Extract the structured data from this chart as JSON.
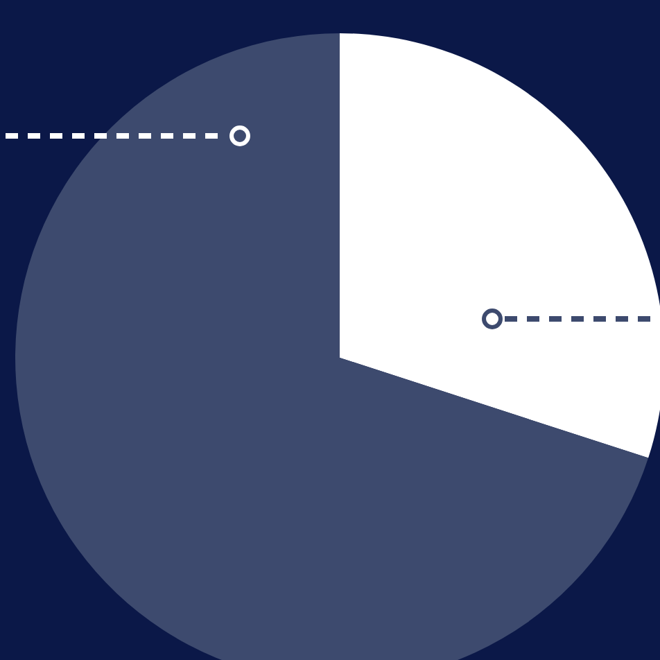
{
  "chart_data": {
    "type": "pie",
    "categories": [
      null,
      null
    ],
    "values": [
      30,
      70
    ],
    "colors": [
      "#ffffff",
      "#3d4a6e"
    ]
  }
}
